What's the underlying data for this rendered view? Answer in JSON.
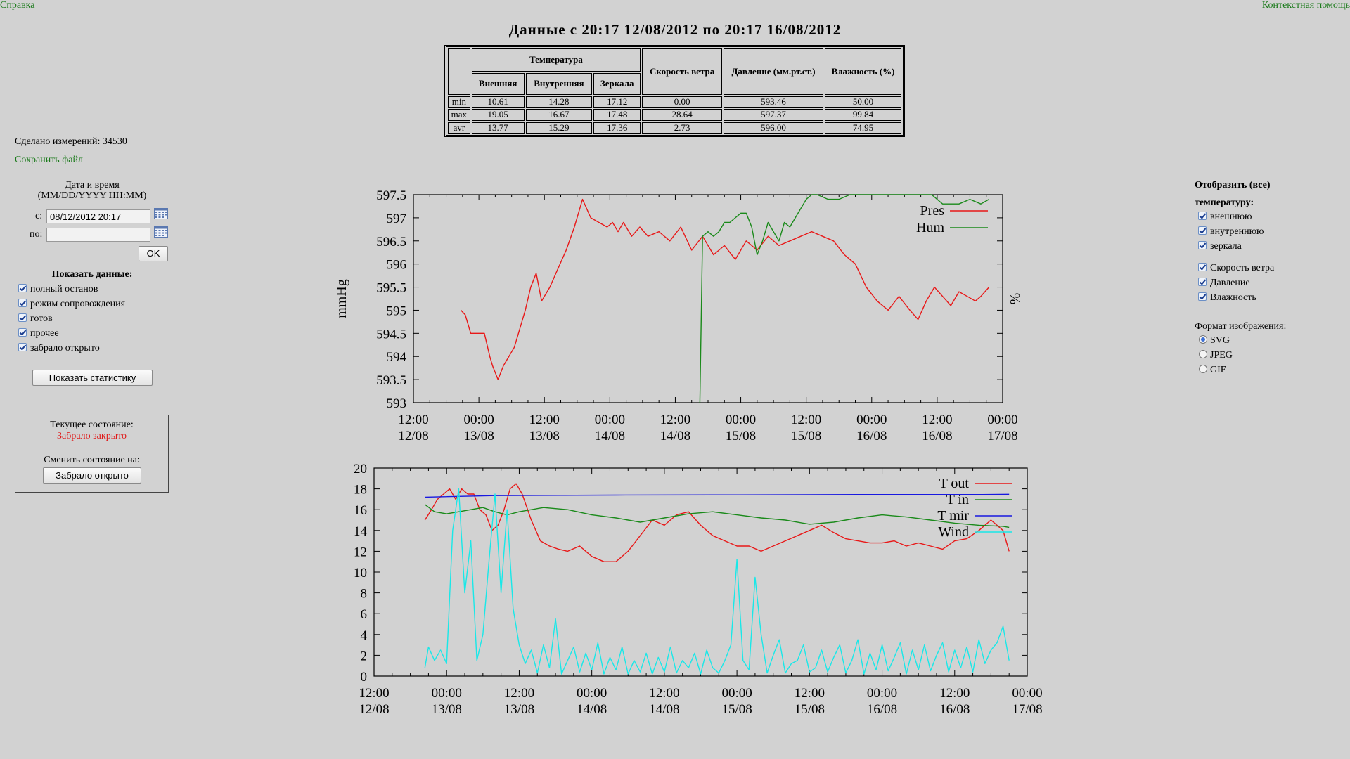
{
  "nav": {
    "help": "Справка",
    "context_help": "Контекстная помощь"
  },
  "title": "Данные с 20:17 12/08/2012 по 20:17 16/08/2012",
  "stats": {
    "temp_header": "Температура",
    "wind_header": "Скорость ветра",
    "pres_header": "Давление (мм.рт.ст.)",
    "hum_header": "Влажность (%)",
    "sub_headers": [
      "Внешняя",
      "Внутренняя",
      "Зеркала"
    ],
    "rows": [
      {
        "label": "min",
        "values": [
          "10.61",
          "14.28",
          "17.12",
          "0.00",
          "593.46",
          "50.00"
        ]
      },
      {
        "label": "max",
        "values": [
          "19.05",
          "16.67",
          "17.48",
          "28.64",
          "597.37",
          "99.84"
        ]
      },
      {
        "label": "avr",
        "values": [
          "13.77",
          "15.29",
          "17.36",
          "2.73",
          "596.00",
          "74.95"
        ]
      }
    ]
  },
  "left": {
    "measurements": "Сделано измерений: 34530",
    "save_file": "Сохранить файл",
    "datetime_title": "Дата и время",
    "datetime_format": "(MM/DD/YYYY HH:MM)",
    "from_label": "с:",
    "from_value": "08/12/2012 20:17",
    "to_label": "по:",
    "to_value": "",
    "ok": "OK",
    "show_data_title": "Показать данные:",
    "show_data": [
      "полный останов",
      "режим сопровождения",
      "готов",
      "прочее",
      "забрало открыто"
    ],
    "show_stats": "Показать статистику",
    "current_state_label": "Текущее состояние:",
    "current_state_value": "Забрало закрыто",
    "change_state_label": "Сменить состояние на:",
    "change_state_button": "Забрало открыто",
    "state_color": "#e01818"
  },
  "right": {
    "show_all": "Отобразить (все)",
    "temp_label": "температуру:",
    "temp_items": [
      "внешнюю",
      "внутреннюю",
      "зеркала"
    ],
    "other_items": [
      "Скорость ветра",
      "Давление",
      "Влажность"
    ],
    "format_label": "Формат изображения:",
    "formats": [
      "SVG",
      "JPEG",
      "GIF"
    ],
    "selected_format": "SVG"
  },
  "chart_data": [
    {
      "type": "line",
      "ylabel": "mmHg",
      "y2label": "%",
      "ylim": [
        593,
        597.5
      ],
      "yticks": [
        "597.5",
        "597",
        "596.5",
        "596",
        "595.5",
        "595",
        "594.5",
        "594",
        "593.5",
        "593"
      ],
      "xticks": [
        [
          "12:00",
          "12/08"
        ],
        [
          "00:00",
          "13/08"
        ],
        [
          "12:00",
          "13/08"
        ],
        [
          "00:00",
          "14/08"
        ],
        [
          "12:00",
          "14/08"
        ],
        [
          "00:00",
          "15/08"
        ],
        [
          "12:00",
          "15/08"
        ],
        [
          "00:00",
          "16/08"
        ],
        [
          "12:00",
          "16/08"
        ],
        [
          "00:00",
          "17/08"
        ]
      ],
      "x_unit": "hours since 12:00 12/08",
      "xlim": [
        0,
        108
      ],
      "series": [
        {
          "name": "Pres",
          "color": "#e81818",
          "x": [
            8.7,
            9.5,
            10.5,
            12,
            13,
            14,
            14.5,
            15.5,
            16.5,
            17.5,
            18.5,
            19.5,
            20.5,
            21.5,
            22.5,
            23.5,
            25,
            26.5,
            28,
            29.5,
            31,
            32.5,
            34,
            35.5,
            36.5,
            37.5,
            38.5,
            40,
            41.5,
            43,
            45,
            47,
            49,
            51,
            53,
            55,
            57,
            59,
            61,
            63,
            65,
            67,
            69,
            71,
            73,
            75,
            77,
            79,
            81,
            83,
            85,
            87,
            89,
            91,
            92.5,
            94,
            95.5,
            97,
            98.5,
            100,
            101.5,
            103,
            104,
            105.5
          ],
          "values": [
            595,
            594.9,
            594.5,
            594.5,
            594.5,
            594,
            593.8,
            593.5,
            593.8,
            594,
            594.2,
            594.6,
            595,
            595.5,
            595.8,
            595.2,
            595.5,
            595.9,
            596.3,
            596.8,
            597.4,
            597.0,
            596.9,
            596.8,
            596.9,
            596.7,
            596.9,
            596.6,
            596.8,
            596.6,
            596.7,
            596.5,
            596.8,
            596.3,
            596.6,
            596.2,
            596.4,
            596.1,
            596.5,
            596.3,
            596.6,
            596.4,
            596.5,
            596.6,
            596.7,
            596.6,
            596.5,
            596.2,
            596.0,
            595.5,
            595.2,
            595.0,
            595.3,
            595.0,
            594.8,
            595.2,
            595.5,
            595.3,
            595.1,
            595.4,
            595.3,
            595.2,
            595.3,
            595.5
          ]
        },
        {
          "name": "Hum",
          "color": "#1a8a1a",
          "x": [
            52.5,
            53,
            54,
            55,
            56,
            57,
            58,
            59,
            60,
            61,
            62,
            63,
            64,
            65,
            66,
            67,
            68,
            69,
            70,
            71,
            72,
            73,
            74,
            76,
            78,
            80,
            90,
            95,
            97,
            100,
            102,
            104,
            105.5
          ],
          "values": [
            593.0,
            596.6,
            596.7,
            596.6,
            596.7,
            596.9,
            596.9,
            597.0,
            597.1,
            597.1,
            596.8,
            596.2,
            596.5,
            596.9,
            596.7,
            596.5,
            596.9,
            596.8,
            597.0,
            597.2,
            597.4,
            597.5,
            597.5,
            597.4,
            597.4,
            597.5,
            597.5,
            597.5,
            597.3,
            597.3,
            597.4,
            597.3,
            597.4
          ]
        }
      ]
    },
    {
      "type": "line",
      "ylim": [
        0,
        20
      ],
      "yticks": [
        "20",
        "18",
        "16",
        "14",
        "12",
        "10",
        "8",
        "6",
        "4",
        "2",
        "0"
      ],
      "xticks": [
        [
          "12:00",
          "12/08"
        ],
        [
          "00:00",
          "13/08"
        ],
        [
          "12:00",
          "13/08"
        ],
        [
          "00:00",
          "14/08"
        ],
        [
          "12:00",
          "14/08"
        ],
        [
          "00:00",
          "15/08"
        ],
        [
          "12:00",
          "15/08"
        ],
        [
          "00:00",
          "16/08"
        ],
        [
          "12:00",
          "16/08"
        ],
        [
          "00:00",
          "17/08"
        ]
      ],
      "x_unit": "hours since 12:00 12/08",
      "xlim": [
        0,
        108
      ],
      "series": [
        {
          "name": "T out",
          "color": "#e81818",
          "x": [
            8.4,
            9.5,
            10.5,
            11.5,
            12.5,
            13.5,
            14.5,
            15.5,
            16.5,
            17.5,
            18.5,
            19.5,
            20.5,
            21.5,
            22.5,
            23.5,
            24.5,
            26,
            27.5,
            29,
            30.5,
            32,
            34,
            36,
            38,
            40,
            42,
            44,
            46,
            48,
            50,
            52,
            54,
            56,
            58,
            60,
            62,
            64,
            66,
            68,
            70,
            72,
            74,
            76,
            78,
            80,
            82,
            84,
            86,
            88,
            90,
            92,
            94,
            96,
            98,
            100,
            102,
            104,
            105
          ],
          "values": [
            15,
            16,
            17,
            17.5,
            18,
            17,
            18,
            17.5,
            17.5,
            16,
            15.5,
            14,
            14.5,
            16,
            18,
            18.5,
            17.5,
            15,
            13,
            12.5,
            12.2,
            12,
            12.5,
            11.5,
            11,
            11,
            12,
            13.5,
            15,
            14.5,
            15.5,
            15.8,
            14.5,
            13.5,
            13,
            12.5,
            12.5,
            12,
            12.5,
            13,
            13.5,
            14,
            14.5,
            13.8,
            13.2,
            13,
            12.8,
            12.8,
            13,
            12.5,
            12.8,
            12.5,
            12.2,
            13,
            13.2,
            14,
            15,
            14,
            12
          ]
        },
        {
          "name": "T in",
          "color": "#1a8a1a",
          "x": [
            8.4,
            10,
            12,
            14,
            16,
            18,
            20,
            22,
            24,
            26,
            28,
            30,
            32,
            36,
            40,
            44,
            48,
            52,
            56,
            60,
            64,
            68,
            72,
            76,
            80,
            84,
            88,
            92,
            96,
            100,
            104,
            105
          ],
          "values": [
            16.5,
            15.8,
            15.6,
            15.8,
            16,
            16.2,
            15.8,
            15.5,
            15.8,
            16,
            16.2,
            16.1,
            16,
            15.5,
            15.2,
            14.8,
            15.2,
            15.6,
            15.8,
            15.5,
            15.2,
            15,
            14.6,
            14.8,
            15.2,
            15.5,
            15.3,
            15,
            14.7,
            14.5,
            14.4,
            14.3
          ]
        },
        {
          "name": "T mir",
          "color": "#1818e0",
          "x": [
            8.4,
            20,
            40,
            60,
            80,
            100,
            105
          ],
          "values": [
            17.2,
            17.35,
            17.4,
            17.42,
            17.45,
            17.45,
            17.48
          ]
        },
        {
          "name": "Wind",
          "color": "#18e8e8",
          "x": [
            8.4,
            9,
            10,
            11,
            12,
            13,
            14,
            15,
            16,
            17,
            18,
            19,
            20,
            21,
            22,
            23,
            24,
            25,
            26,
            27,
            28,
            29,
            30,
            31,
            32,
            33,
            34,
            35,
            36,
            37,
            38,
            39,
            40,
            41,
            42,
            43,
            44,
            45,
            46,
            47,
            48,
            49,
            50,
            51,
            52,
            53,
            54,
            55,
            56,
            57,
            58,
            59,
            60,
            61,
            62,
            63,
            64,
            65,
            66,
            67,
            68,
            69,
            70,
            71,
            72,
            73,
            74,
            75,
            76,
            77,
            78,
            79,
            80,
            81,
            82,
            83,
            84,
            85,
            86,
            87,
            88,
            89,
            90,
            91,
            92,
            93,
            94,
            95,
            96,
            97,
            98,
            99,
            100,
            101,
            102,
            103,
            104,
            105
          ],
          "values": [
            0.8,
            2.8,
            1.5,
            2.5,
            1.2,
            14.0,
            18.0,
            8.0,
            13.0,
            1.5,
            4.0,
            11.0,
            17.5,
            8.0,
            16.0,
            6.5,
            3.0,
            1.2,
            2.5,
            0.3,
            3.0,
            0.8,
            5.5,
            0.2,
            1.5,
            2.8,
            0.4,
            2.2,
            0.6,
            3.2,
            0.2,
            1.8,
            0.6,
            2.8,
            0.2,
            1.5,
            0.4,
            2.2,
            0.2,
            1.8,
            0.4,
            2.8,
            0.3,
            1.5,
            0.8,
            2.2,
            0.2,
            2.5,
            0.8,
            0.3,
            1.5,
            3.0,
            11.2,
            1.5,
            0.6,
            9.5,
            4.0,
            0.3,
            2.0,
            3.5,
            0.3,
            1.2,
            1.5,
            3.0,
            0.4,
            0.8,
            2.5,
            0.4,
            1.8,
            3.0,
            0.3,
            1.5,
            3.5,
            0.2,
            2.2,
            0.6,
            3.0,
            0.5,
            1.8,
            3.2,
            0.2,
            2.5,
            0.6,
            3.0,
            0.5,
            2.0,
            3.2,
            0.4,
            2.5,
            0.8,
            2.8,
            0.4,
            3.5,
            1.2,
            2.5,
            3.2,
            4.8,
            1.5
          ]
        }
      ]
    }
  ]
}
